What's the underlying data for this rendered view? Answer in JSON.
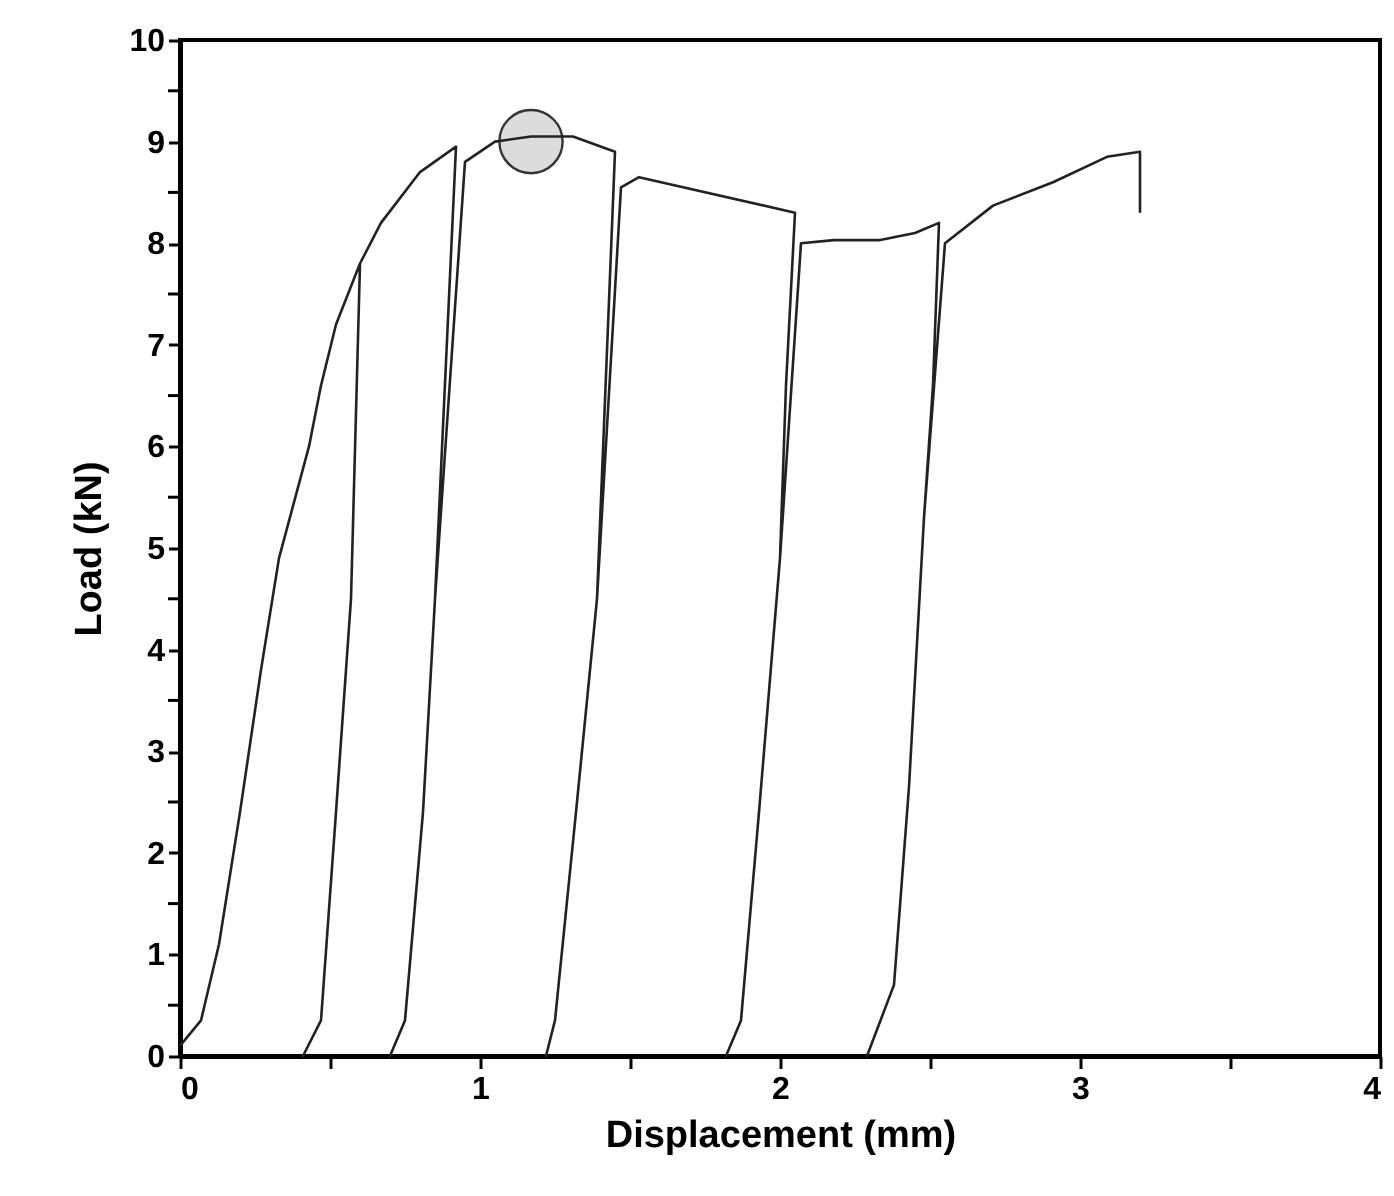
{
  "chart_data": {
    "type": "line",
    "xlabel": "Displacement (mm)",
    "ylabel": "Load (kN)",
    "xlim": [
      0,
      4
    ],
    "ylim": [
      0,
      10
    ],
    "xticks": [
      0,
      {
        "value": 0.5,
        "label": null
      },
      1,
      {
        "value": 1.5,
        "label": null
      },
      2,
      {
        "value": 2.5,
        "label": null
      },
      3,
      {
        "value": 3.5,
        "label": null
      },
      4
    ],
    "yticks": [
      0,
      {
        "value": 0.5,
        "label": null
      },
      1,
      {
        "value": 1.5,
        "label": null
      },
      2,
      {
        "value": 2.5,
        "label": null
      },
      3,
      {
        "value": 3.5,
        "label": null
      },
      4,
      {
        "value": 4.5,
        "label": null
      },
      5,
      {
        "value": 5.5,
        "label": null
      },
      6,
      {
        "value": 6.5,
        "label": null
      },
      7,
      {
        "value": 7.5,
        "label": null
      },
      8,
      {
        "value": 8.5,
        "label": null
      },
      9,
      {
        "value": 9.5,
        "label": null
      },
      10
    ],
    "grid": false,
    "marker": "none",
    "line_style": "solid",
    "series": [
      {
        "color": "#222222",
        "x": [
          0,
          0.07,
          0.13,
          0.2,
          0.27,
          0.33,
          0.43,
          0.47,
          0.52,
          0.6,
          0.57,
          0.52,
          0.47,
          0.41,
          0.47,
          0.52,
          0.57,
          0.6,
          0.67,
          0.8,
          0.92,
          0.85,
          0.81,
          0.75,
          0.7,
          0.75,
          0.81,
          0.85,
          0.95,
          1.05,
          1.17,
          1.31,
          1.45,
          1.39,
          1.32,
          1.25,
          1.22,
          1.25,
          1.32,
          1.39,
          1.47,
          1.53,
          2.05,
          2.02,
          2.0,
          1.93,
          1.87,
          1.82,
          1.87,
          1.93,
          2.0,
          2.07,
          2.18,
          2.33,
          2.45,
          2.53,
          2.51,
          2.48,
          2.43,
          2.38,
          2.29,
          2.38,
          2.43,
          2.48,
          2.55,
          2.71,
          2.91,
          3.09,
          3.2,
          3.2
        ],
        "values": [
          0.1,
          0.35,
          1.1,
          2.4,
          3.8,
          4.9,
          6.0,
          6.6,
          7.2,
          7.8,
          4.5,
          2.4,
          0.35,
          0,
          0.35,
          2.4,
          4.5,
          7.8,
          8.2,
          8.7,
          8.95,
          4.5,
          2.4,
          0.35,
          0,
          0.35,
          2.4,
          4.5,
          8.8,
          9.0,
          9.05,
          9.05,
          8.9,
          4.5,
          2.4,
          0.35,
          0,
          0.35,
          2.4,
          4.5,
          8.55,
          8.65,
          8.3,
          6.6,
          4.9,
          2.4,
          0.35,
          0,
          0.35,
          2.4,
          4.9,
          8.0,
          8.03,
          8.03,
          8.1,
          8.2,
          6.6,
          5.3,
          2.65,
          0.7,
          0,
          0.7,
          2.65,
          5.3,
          8.0,
          8.37,
          8.6,
          8.85,
          8.9,
          8.3
        ]
      },
      {
        "color": "#dcdcdc",
        "type": "scatter",
        "marker": "circle",
        "x": [
          1.17
        ],
        "values": [
          9.0
        ]
      }
    ]
  }
}
